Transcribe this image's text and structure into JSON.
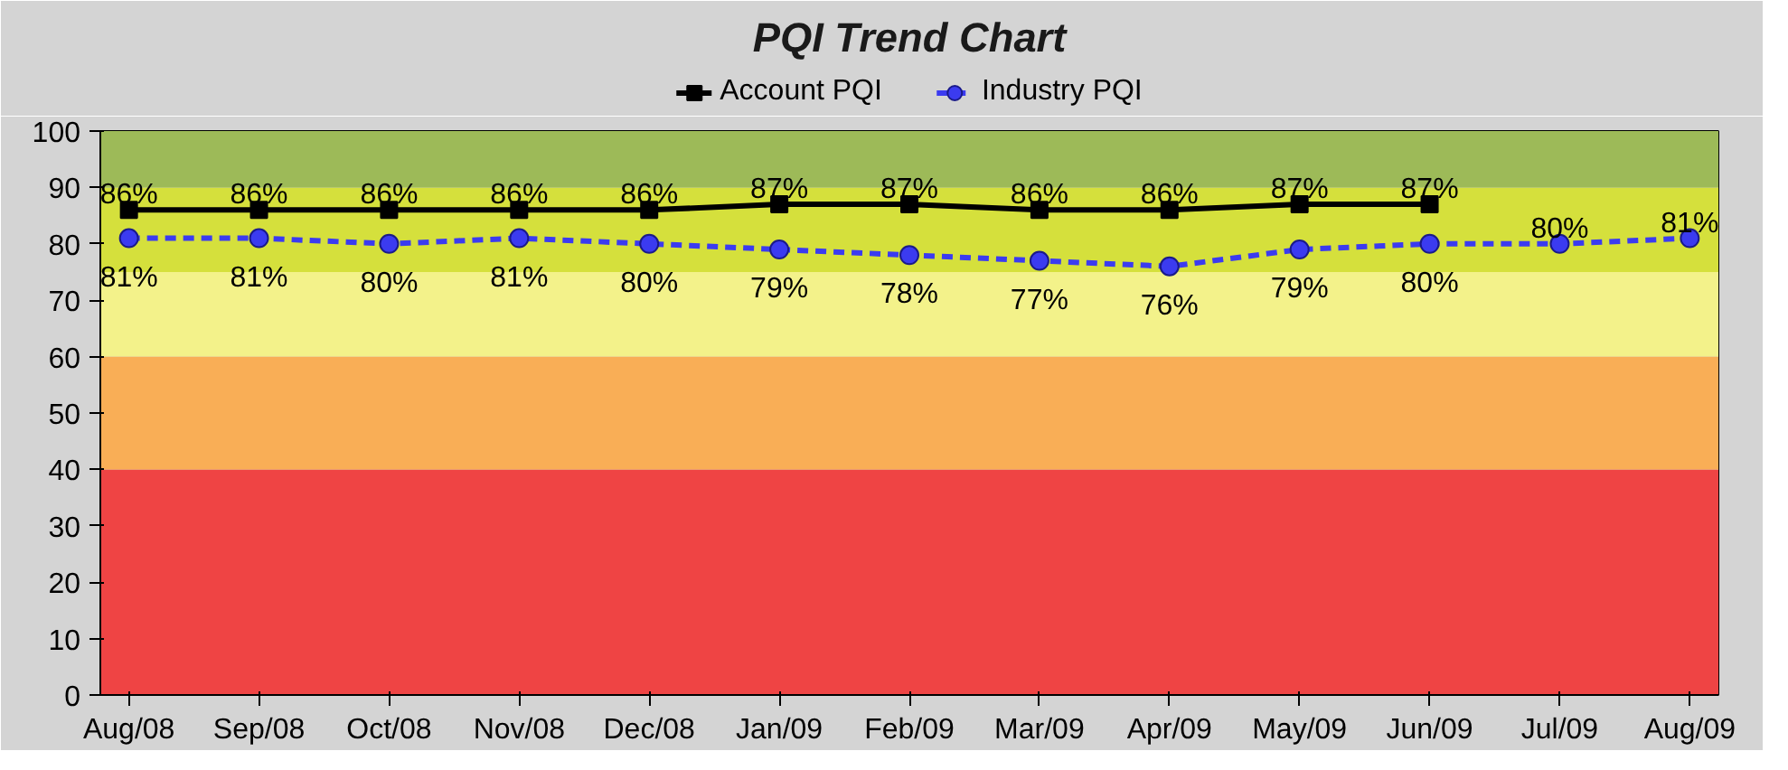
{
  "chart_data": {
    "type": "line",
    "title": "PQI Trend Chart",
    "categories": [
      "Aug/08",
      "Sep/08",
      "Oct/08",
      "Nov/08",
      "Dec/08",
      "Jan/09",
      "Feb/09",
      "Mar/09",
      "Apr/09",
      "May/09",
      "Jun/09",
      "Jul/09",
      "Aug/09"
    ],
    "series": [
      {
        "name": "Account PQI",
        "color": "#000000",
        "marker": "square",
        "line_style": "solid",
        "values": [
          86,
          86,
          86,
          86,
          86,
          87,
          87,
          86,
          86,
          87,
          87,
          null,
          null
        ],
        "value_labels": [
          "86%",
          "86%",
          "86%",
          "86%",
          "86%",
          "87%",
          "87%",
          "86%",
          "86%",
          "87%",
          "87%",
          null,
          null
        ]
      },
      {
        "name": "Industry PQI",
        "color": "#3b3bf0",
        "marker": "circle",
        "line_style": "dashed",
        "values": [
          81,
          81,
          80,
          81,
          80,
          79,
          78,
          77,
          76,
          79,
          80,
          80,
          81
        ],
        "value_labels": [
          "81%",
          "81%",
          "80%",
          "81%",
          "80%",
          "79%",
          "78%",
          "77%",
          "76%",
          "79%",
          "80%",
          "80%",
          "81%"
        ]
      }
    ],
    "ylim": [
      0,
      100
    ],
    "yticks": [
      0,
      10,
      20,
      30,
      40,
      50,
      60,
      70,
      80,
      90,
      100
    ],
    "bands": [
      {
        "axis": "y",
        "from": 0,
        "to": 40,
        "color": "#ef4444"
      },
      {
        "axis": "y",
        "from": 40,
        "to": 60,
        "color": "#f9ae56"
      },
      {
        "axis": "y",
        "from": 60,
        "to": 75,
        "color": "#f3f28a"
      },
      {
        "axis": "y",
        "from": 75,
        "to": 90,
        "color": "#d5e03c"
      },
      {
        "axis": "y",
        "from": 90,
        "to": 100,
        "color": "#9dba58"
      }
    ],
    "grid": true,
    "legend": "top"
  }
}
